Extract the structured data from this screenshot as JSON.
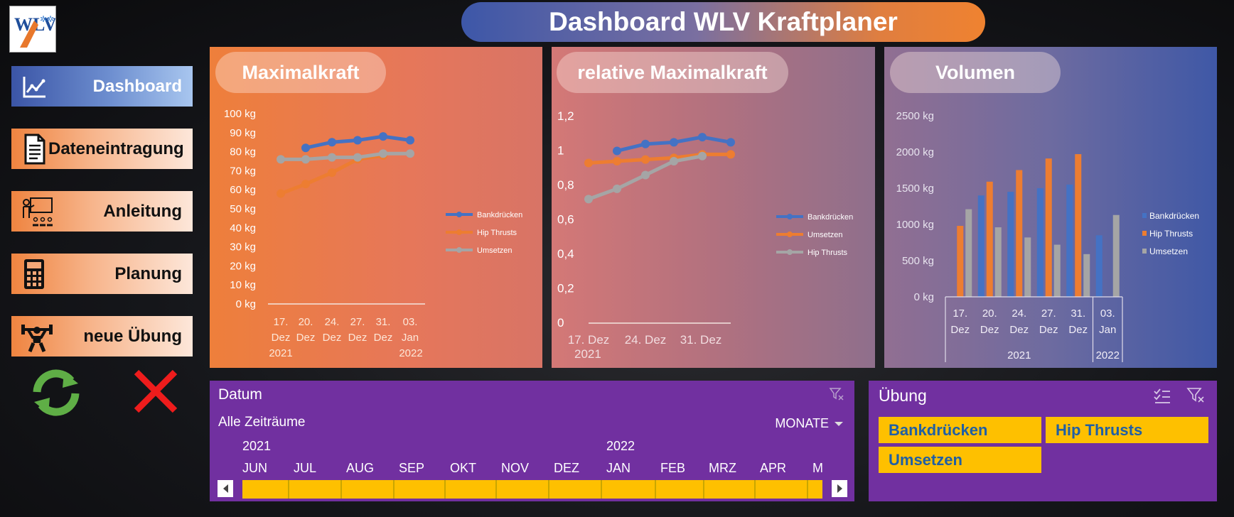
{
  "header": {
    "title": "Dashboard WLV Kraftplaner",
    "logo_text": "WLV"
  },
  "nav": {
    "dashboard": "Dashboard",
    "dateneintragung": "Dateneintragung",
    "anleitung": "Anleitung",
    "planung": "Planung",
    "neue_uebung": "neue Übung"
  },
  "icons": {
    "refresh": "refresh-icon",
    "close": "close-icon"
  },
  "panels": {
    "maximalkraft": "Maximalkraft",
    "relative": "relative Maximalkraft",
    "volumen": "Volumen"
  },
  "colors": {
    "blue": "#4472c4",
    "orange": "#ed7d31",
    "gray": "#a5a5a5",
    "slicer": "#7130a0",
    "tile": "#fec000"
  },
  "chart_data": [
    {
      "type": "line",
      "title": "Maximalkraft",
      "y_ticks": [
        "100 kg",
        "90 kg",
        "80 kg",
        "70 kg",
        "60 kg",
        "50 kg",
        "40 kg",
        "30 kg",
        "20 kg",
        "10 kg",
        "0 kg"
      ],
      "ylim": [
        0,
        100
      ],
      "categories": [
        "17. Dez",
        "20. Dez",
        "24. Dez",
        "27. Dez",
        "31. Dez",
        "03. Jan"
      ],
      "year_labels": [
        "2021",
        "2022"
      ],
      "series": [
        {
          "name": "Bankdrücken",
          "color": "#4472c4",
          "values": [
            null,
            82,
            85,
            86,
            88,
            86
          ]
        },
        {
          "name": "Hip Thrusts",
          "color": "#ed7d31",
          "values": [
            58,
            63,
            69,
            76,
            78,
            null
          ]
        },
        {
          "name": "Umsetzen",
          "color": "#a5a5a5",
          "values": [
            76,
            76,
            77,
            77,
            79,
            79
          ]
        }
      ],
      "legend_position": "right"
    },
    {
      "type": "line",
      "title": "relative Maximalkraft",
      "y_ticks": [
        "1,2",
        "1",
        "0,8",
        "0,6",
        "0,4",
        "0,2",
        "0"
      ],
      "ylim": [
        0,
        1.2
      ],
      "categories": [
        "17. Dez",
        "20. Dez",
        "24. Dez",
        "27. Dez",
        "31. Dez",
        "03. Jan"
      ],
      "x_tick_labels": [
        "17. Dez",
        "24. Dez",
        "31. Dez"
      ],
      "year_label": "2021",
      "series": [
        {
          "name": "Bankdrücken",
          "color": "#4472c4",
          "values": [
            null,
            1.0,
            1.04,
            1.05,
            1.08,
            1.05
          ]
        },
        {
          "name": "Umsetzen",
          "color": "#ed7d31",
          "values": [
            0.93,
            0.94,
            0.95,
            0.96,
            0.98,
            0.98
          ]
        },
        {
          "name": "Hip Thrusts",
          "color": "#a5a5a5",
          "values": [
            0.72,
            0.78,
            0.86,
            0.94,
            0.97,
            null
          ]
        }
      ],
      "legend_position": "right"
    },
    {
      "type": "bar",
      "title": "Volumen",
      "y_ticks": [
        "2500 kg",
        "2000 kg",
        "1500 kg",
        "1000 kg",
        "500 kg",
        "0 kg"
      ],
      "ylim": [
        0,
        2500
      ],
      "categories": [
        [
          "17.",
          "Dez"
        ],
        [
          "20.",
          "Dez"
        ],
        [
          "24.",
          "Dez"
        ],
        [
          "27.",
          "Dez"
        ],
        [
          "31.",
          "Dez"
        ],
        [
          "03.",
          "Jan"
        ]
      ],
      "year_labels": [
        "2021",
        "2022"
      ],
      "series": [
        {
          "name": "Bankdrücken",
          "color": "#4472c4",
          "values": [
            null,
            1400,
            1450,
            1500,
            1550,
            850
          ]
        },
        {
          "name": "Hip Thrusts",
          "color": "#ed7d31",
          "values": [
            980,
            1590,
            1750,
            1910,
            1970,
            null
          ]
        },
        {
          "name": "Umsetzen",
          "color": "#a5a5a5",
          "values": [
            1210,
            960,
            820,
            720,
            590,
            1130
          ]
        }
      ],
      "legend_position": "right"
    }
  ],
  "timeline": {
    "title": "Datum",
    "range_label": "Alle Zeiträume",
    "level": "MONATE",
    "years": [
      "2021",
      "2022"
    ],
    "months": [
      "JUN",
      "JUL",
      "AUG",
      "SEP",
      "OKT",
      "NOV",
      "DEZ",
      "JAN",
      "FEB",
      "MRZ",
      "APR",
      "M"
    ]
  },
  "slicer": {
    "title": "Übung",
    "items": [
      "Bankdrücken",
      "Hip Thrusts",
      "Umsetzen"
    ]
  }
}
